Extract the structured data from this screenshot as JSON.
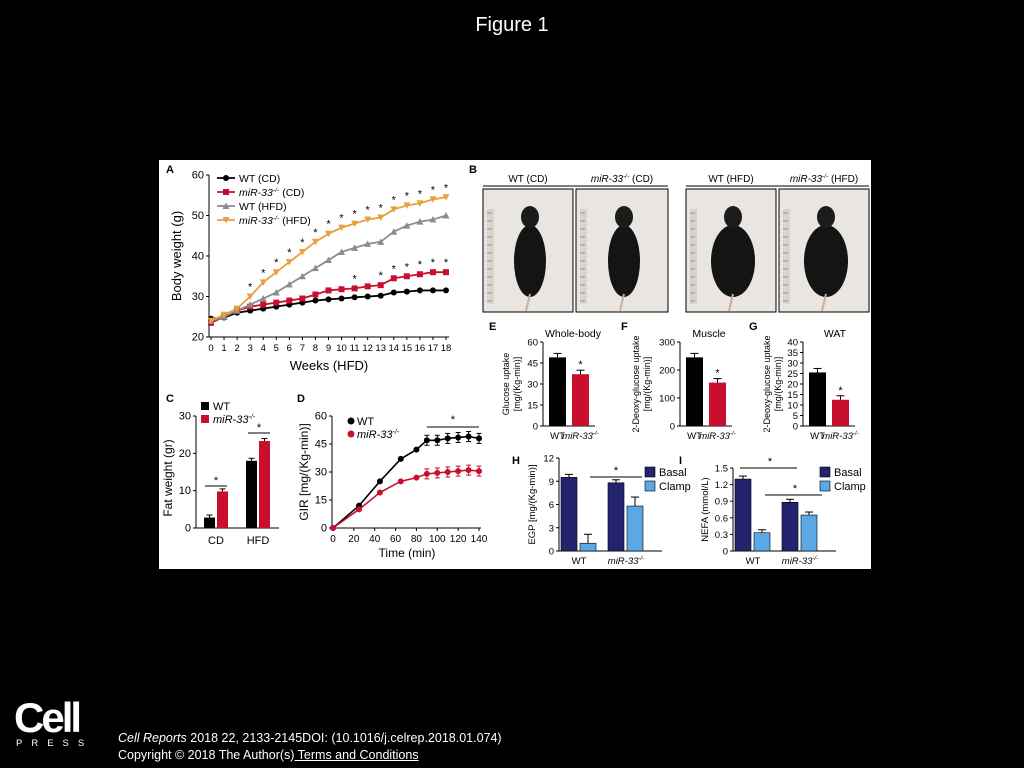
{
  "slide": {
    "title": "Figure 1"
  },
  "footer": {
    "journal": "Cell Reports",
    "citation": " 2018 22, 2133-2145DOI: (10.1016/j.celrep.2018.01.074)",
    "copyright": "Copyright © 2018 The Author(s)",
    "terms_link": " Terms and Conditions"
  },
  "logo": {
    "word": "Cell",
    "press": "PRESS"
  },
  "chart_data": [
    {
      "panel": "A",
      "type": "line",
      "xlabel": "Weeks (HFD)",
      "ylabel": "Body weight (g)",
      "ylim": [
        20,
        60
      ],
      "yticks": [
        20,
        30,
        40,
        50,
        60
      ],
      "x": [
        0,
        1,
        2,
        3,
        4,
        5,
        6,
        7,
        8,
        9,
        10,
        11,
        12,
        13,
        14,
        15,
        16,
        17,
        18
      ],
      "series": [
        {
          "name": "WT (CD)",
          "color": "#000000",
          "marker": "circle",
          "values": [
            24.5,
            24.8,
            26,
            26.5,
            27,
            27.5,
            28,
            28.5,
            29,
            29.3,
            29.5,
            29.8,
            30,
            30.2,
            31,
            31.2,
            31.5,
            31.5,
            31.5
          ]
        },
        {
          "name": "miR-33-/- (CD)",
          "color": "#c8102e",
          "marker": "square",
          "values": [
            23.5,
            25,
            26.5,
            27.5,
            28,
            28.5,
            29,
            29.5,
            30.5,
            31.5,
            31.8,
            32,
            32.5,
            32.8,
            34.5,
            35,
            35.5,
            36,
            36
          ]
        },
        {
          "name": "WT (HFD)",
          "color": "#8c8c8c",
          "marker": "triangle-up",
          "values": [
            24,
            25,
            26.5,
            28,
            29.5,
            31,
            33,
            35,
            37,
            39,
            41,
            42,
            43,
            43.5,
            46,
            47.5,
            48.5,
            49,
            50
          ]
        },
        {
          "name": "miR-33-/- (HFD)",
          "color": "#e8a03c",
          "marker": "triangle-down",
          "values": [
            24,
            25.5,
            27,
            30,
            33.5,
            36,
            38.5,
            41,
            43.5,
            45.5,
            47,
            48,
            49,
            49.5,
            51.5,
            52.5,
            53,
            54,
            54.5
          ]
        }
      ],
      "legend_series_base": [
        "WT",
        "miR-33",
        "WT",
        "miR-33"
      ],
      "legend_series_sup": [
        "",
        "-/-",
        "",
        "-/-"
      ],
      "legend_series_tail": [
        " (CD)",
        " (CD)",
        " (HFD)",
        " (HFD)"
      ],
      "hfd_star_weeks": [
        3,
        4,
        5,
        6,
        7,
        8,
        9,
        10,
        11,
        12,
        13,
        14,
        15,
        16,
        17,
        18
      ],
      "cd_star_weeks": [
        11,
        13,
        14,
        15,
        16,
        17,
        18
      ],
      "star": "*"
    },
    {
      "panel": "C",
      "type": "bar",
      "categories": [
        "CD",
        "HFD"
      ],
      "ylabel": "Fat weight (gr)",
      "ylim": [
        0,
        30
      ],
      "yticks": [
        0,
        10,
        20,
        30
      ],
      "series": [
        {
          "name": "WT",
          "color": "#000000",
          "values": [
            2.8,
            18
          ]
        },
        {
          "name": "miR-33-/-",
          "color": "#c8102e",
          "values": [
            9.8,
            23.3
          ]
        }
      ],
      "legend": [
        "WT",
        "miR-33"
      ],
      "legend_sup": [
        "",
        "-/-"
      ],
      "star": "*"
    },
    {
      "panel": "D",
      "type": "line",
      "xlabel": "Time (min)",
      "ylabel": "GIR [mg/(Kg-min)]",
      "xlim": [
        0,
        140
      ],
      "xticks": [
        0,
        20,
        40,
        60,
        80,
        100,
        120,
        140
      ],
      "ylim": [
        0,
        60
      ],
      "yticks": [
        0,
        15,
        30,
        45,
        60
      ],
      "x": [
        0,
        25,
        45,
        65,
        80,
        90,
        100,
        110,
        120,
        130,
        140
      ],
      "series": [
        {
          "name": "WT",
          "color": "#000000",
          "values": [
            0,
            12,
            25,
            37,
            42,
            47,
            47,
            48,
            48.5,
            49,
            48
          ]
        },
        {
          "name": "miR-33-/-",
          "color": "#c8102e",
          "values": [
            0,
            10,
            19,
            25,
            27,
            29,
            29.5,
            30,
            30.5,
            31,
            30.5
          ]
        }
      ],
      "legend": [
        "WT",
        "miR-33"
      ],
      "legend_sup": [
        "",
        "-/-"
      ],
      "star": "*"
    },
    {
      "panel": "E",
      "type": "bar",
      "title": "Whole-body",
      "ylabel": [
        "Glucose uptake",
        "[mg/(Kg-min)]"
      ],
      "categories": [
        "WT",
        "miR-33"
      ],
      "categories_sup": [
        "",
        "-/-"
      ],
      "ylim": [
        0,
        60
      ],
      "yticks": [
        0,
        15,
        30,
        45,
        60
      ],
      "values": [
        49,
        37
      ],
      "colors": [
        "#000000",
        "#c8102e"
      ],
      "star": "*"
    },
    {
      "panel": "F",
      "type": "bar",
      "title": "Muscle",
      "ylabel": [
        "2-Deoxy-glucose uptake",
        "[mg/(Kg-min)]"
      ],
      "categories": [
        "WT",
        "miR-33"
      ],
      "categories_sup": [
        "",
        "-/-"
      ],
      "ylim": [
        0,
        300
      ],
      "yticks": [
        0,
        100,
        200,
        300
      ],
      "values": [
        245,
        155
      ],
      "colors": [
        "#000000",
        "#c8102e"
      ],
      "star": "*"
    },
    {
      "panel": "G",
      "type": "bar",
      "title": "WAT",
      "ylabel": [
        "2-Deoxy-glucose uptake",
        "[mg/(Kg-min)]"
      ],
      "categories": [
        "WT",
        "miR-33"
      ],
      "categories_sup": [
        "",
        "-/-"
      ],
      "ylim": [
        0,
        40
      ],
      "yticks": [
        0,
        5,
        10,
        15,
        20,
        25,
        30,
        35,
        40
      ],
      "values": [
        25.5,
        12.5
      ],
      "colors": [
        "#000000",
        "#c8102e"
      ],
      "star": "*"
    },
    {
      "panel": "H",
      "type": "bar",
      "ylabel": "EGP [mg/(Kg-min)]",
      "categories": [
        "WT",
        "miR-33"
      ],
      "categories_sup": [
        "",
        "-/-"
      ],
      "ylim": [
        0,
        12
      ],
      "yticks": [
        0,
        3,
        6,
        9,
        12
      ],
      "series": [
        {
          "name": "Basal",
          "color": "#24246e",
          "values": [
            9.5,
            8.8
          ]
        },
        {
          "name": "Clamp",
          "color": "#5aa9e6",
          "values": [
            1.0,
            5.8
          ]
        }
      ],
      "star": "*"
    },
    {
      "panel": "I",
      "type": "bar",
      "ylabel": "NEFA (mmol/L)",
      "categories": [
        "WT",
        "miR-33"
      ],
      "categories_sup": [
        "",
        "-/-"
      ],
      "ylim": [
        0,
        1.5
      ],
      "yticks": [
        0,
        0.3,
        0.6,
        0.9,
        1.2,
        1.5
      ],
      "series": [
        {
          "name": "Basal",
          "color": "#24246e",
          "values": [
            1.3,
            0.88
          ]
        },
        {
          "name": "Clamp",
          "color": "#5aa9e6",
          "values": [
            0.33,
            0.65
          ]
        }
      ],
      "star": "*"
    },
    {
      "panel": "B",
      "type": "image-panel",
      "photo_labels_base": [
        "WT",
        "miR-33",
        "WT",
        "miR-33"
      ],
      "photo_labels_sup": [
        "",
        "-/-",
        "",
        "-/-"
      ],
      "photo_labels_tail": [
        " (CD)",
        " (CD)",
        " (HFD)",
        " (HFD)"
      ]
    }
  ]
}
